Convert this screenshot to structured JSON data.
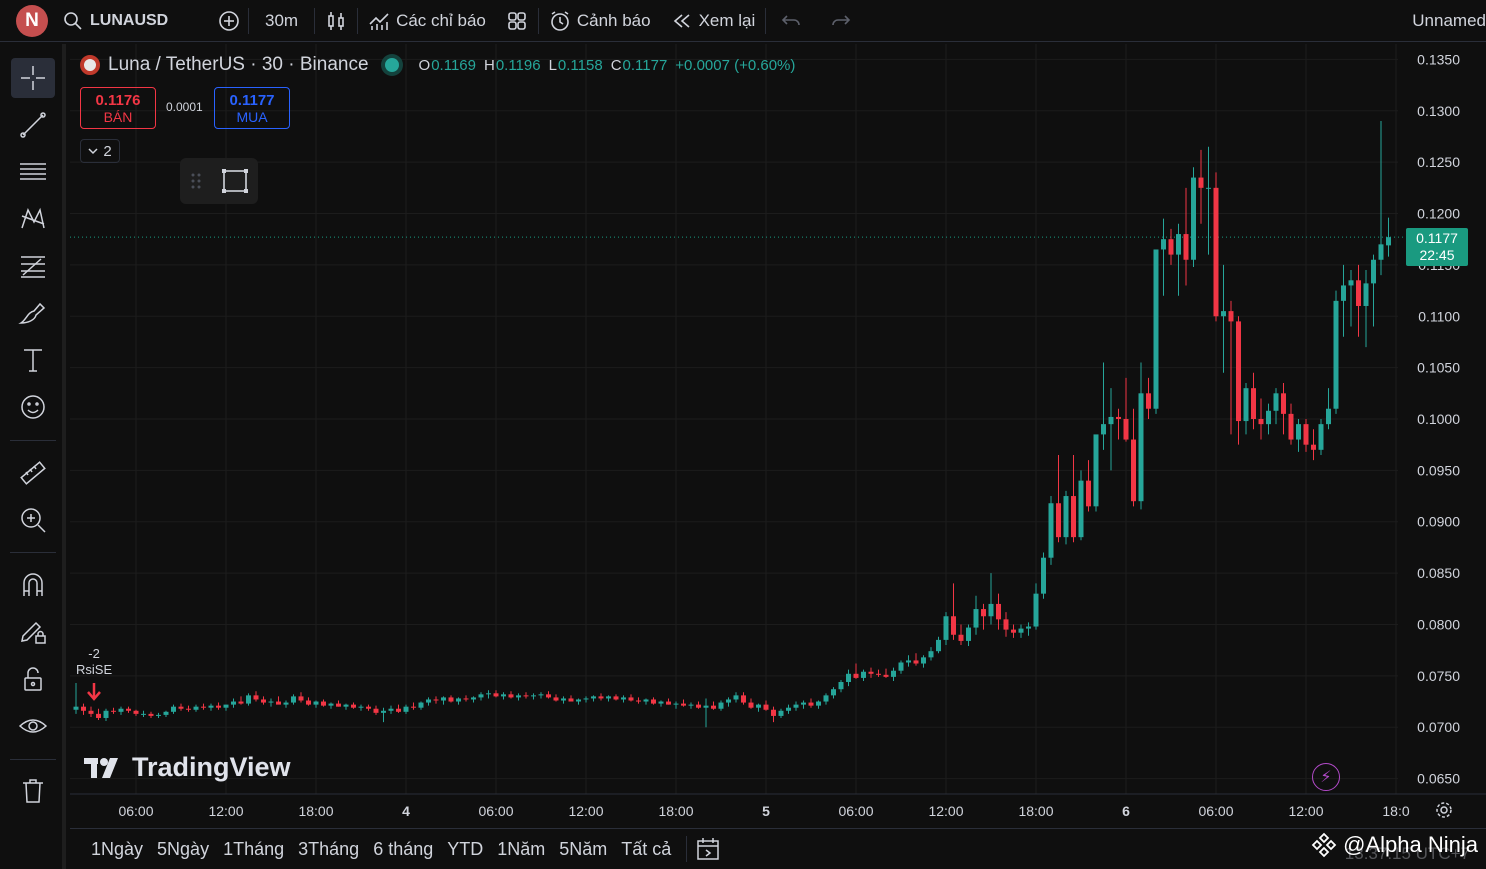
{
  "topbar": {
    "avatar_letter": "N",
    "symbol": "LUNAUSD",
    "interval": "30m",
    "indicators_label": "Các chỉ báo",
    "alerts_label": "Cảnh báo",
    "replay_label": "Xem lại",
    "layout_name": "Unnamed"
  },
  "legend": {
    "title": "Luna / TetherUS · 30 · Binance",
    "o_label": "O",
    "o_value": "0.1169",
    "h_label": "H",
    "h_value": "0.1196",
    "l_label": "L",
    "l_value": "0.1158",
    "c_label": "C",
    "c_value": "0.1177",
    "change": "+0.0007 (+0.60%)"
  },
  "trade": {
    "sell_price": "0.1176",
    "sell_label": "BÁN",
    "spread": "0.0001",
    "buy_price": "0.1177",
    "buy_label": "MUA",
    "collapse_count": "2"
  },
  "price_label": {
    "price": "0.1177",
    "countdown": "22:45"
  },
  "event_marker": {
    "value": "-2",
    "label": "RsiSE"
  },
  "logo_text": "TradingView",
  "ranges": [
    "1Ngày",
    "5Ngày",
    "1Tháng",
    "3Tháng",
    "6 tháng",
    "YTD",
    "1Năm",
    "5Năm",
    "Tất cả"
  ],
  "watermark": "@Alpha Ninja",
  "clock": "13:37:15 UTC+7",
  "colors": {
    "up": "#26a69a",
    "down": "#f23645",
    "background": "#0f0f0f",
    "grid": "#1c1c1c",
    "current_price": "#1a9a80"
  },
  "chart_data": {
    "type": "candlestick",
    "title": "Luna / TetherUS · 30 · Binance",
    "ylim": [
      0.0635,
      0.1365
    ],
    "y_ticks": [
      "0.1350",
      "0.1300",
      "0.1250",
      "0.1200",
      "0.1150",
      "0.1100",
      "0.1050",
      "0.1000",
      "0.0950",
      "0.0900",
      "0.0850",
      "0.0800",
      "0.0750",
      "0.0700",
      "0.0650"
    ],
    "x_ticks": [
      "06:00",
      "12:00",
      "18:00",
      "4",
      "06:00",
      "12:00",
      "18:00",
      "5",
      "06:00",
      "12:00",
      "18:00",
      "6",
      "06:00",
      "12:00",
      "18:0"
    ],
    "x_tick_bar_index": [
      8,
      20,
      32,
      44,
      56,
      68,
      80,
      92,
      104,
      116,
      128,
      140,
      152,
      164,
      176
    ],
    "current_price": 0.1177,
    "grid": true,
    "candles_ohlc": [
      [
        0.0717,
        0.0743,
        0.0713,
        0.072
      ],
      [
        0.072,
        0.0723,
        0.0712,
        0.0716
      ],
      [
        0.0716,
        0.072,
        0.071,
        0.0713
      ],
      [
        0.0713,
        0.0718,
        0.0707,
        0.0709
      ],
      [
        0.0709,
        0.0718,
        0.0706,
        0.0716
      ],
      [
        0.0716,
        0.0719,
        0.0713,
        0.0715
      ],
      [
        0.0715,
        0.072,
        0.0712,
        0.0718
      ],
      [
        0.0718,
        0.072,
        0.0714,
        0.0716
      ],
      [
        0.0716,
        0.0717,
        0.0711,
        0.0713
      ],
      [
        0.0713,
        0.0716,
        0.071,
        0.0713
      ],
      [
        0.0713,
        0.0715,
        0.0709,
        0.0711
      ],
      [
        0.0711,
        0.0714,
        0.0709,
        0.0712
      ],
      [
        0.0712,
        0.0716,
        0.071,
        0.0715
      ],
      [
        0.0715,
        0.0722,
        0.0713,
        0.072
      ],
      [
        0.072,
        0.0723,
        0.0716,
        0.0718
      ],
      [
        0.0718,
        0.0721,
        0.0715,
        0.0717
      ],
      [
        0.0717,
        0.0722,
        0.0715,
        0.072
      ],
      [
        0.072,
        0.0723,
        0.0717,
        0.0719
      ],
      [
        0.0719,
        0.0723,
        0.0716,
        0.0721
      ],
      [
        0.0721,
        0.0724,
        0.0717,
        0.0719
      ],
      [
        0.0719,
        0.0722,
        0.0716,
        0.0722
      ],
      [
        0.0722,
        0.0728,
        0.0719,
        0.0725
      ],
      [
        0.0725,
        0.073,
        0.0722,
        0.0723
      ],
      [
        0.0723,
        0.0733,
        0.0721,
        0.0731
      ],
      [
        0.0731,
        0.0735,
        0.0725,
        0.0727
      ],
      [
        0.0727,
        0.073,
        0.0722,
        0.0724
      ],
      [
        0.0724,
        0.0728,
        0.072,
        0.0725
      ],
      [
        0.0725,
        0.073,
        0.0723,
        0.0722
      ],
      [
        0.0722,
        0.0726,
        0.0719,
        0.0724
      ],
      [
        0.0724,
        0.0732,
        0.0722,
        0.073
      ],
      [
        0.073,
        0.0734,
        0.0724,
        0.0726
      ],
      [
        0.0726,
        0.0729,
        0.0721,
        0.0722
      ],
      [
        0.0722,
        0.0726,
        0.0719,
        0.0725
      ],
      [
        0.0725,
        0.0727,
        0.072,
        0.0721
      ],
      [
        0.0721,
        0.0724,
        0.0718,
        0.0723
      ],
      [
        0.0723,
        0.0726,
        0.072,
        0.072
      ],
      [
        0.072,
        0.0723,
        0.0717,
        0.0722
      ],
      [
        0.0722,
        0.0724,
        0.0718,
        0.0719
      ],
      [
        0.0719,
        0.0722,
        0.0716,
        0.072
      ],
      [
        0.072,
        0.0722,
        0.0716,
        0.0718
      ],
      [
        0.0718,
        0.0721,
        0.0712,
        0.0714
      ],
      [
        0.0714,
        0.0719,
        0.0705,
        0.0716
      ],
      [
        0.0716,
        0.0721,
        0.0713,
        0.0718
      ],
      [
        0.0718,
        0.0722,
        0.0714,
        0.0715
      ],
      [
        0.0715,
        0.0722,
        0.0713,
        0.072
      ],
      [
        0.072,
        0.0724,
        0.0717,
        0.0719
      ],
      [
        0.0719,
        0.0725,
        0.0717,
        0.0724
      ],
      [
        0.0724,
        0.0729,
        0.0721,
        0.0727
      ],
      [
        0.0727,
        0.073,
        0.0723,
        0.0726
      ],
      [
        0.0726,
        0.073,
        0.0722,
        0.0729
      ],
      [
        0.0729,
        0.0731,
        0.0724,
        0.0725
      ],
      [
        0.0725,
        0.0729,
        0.0722,
        0.0728
      ],
      [
        0.0728,
        0.0731,
        0.0725,
        0.0727
      ],
      [
        0.0727,
        0.073,
        0.0724,
        0.0729
      ],
      [
        0.0729,
        0.0734,
        0.0726,
        0.0732
      ],
      [
        0.0732,
        0.0736,
        0.0728,
        0.0733
      ],
      [
        0.0733,
        0.0736,
        0.0729,
        0.073
      ],
      [
        0.073,
        0.0734,
        0.0727,
        0.0732
      ],
      [
        0.0732,
        0.0735,
        0.0728,
        0.0729
      ],
      [
        0.0729,
        0.0733,
        0.0726,
        0.0731
      ],
      [
        0.0731,
        0.0734,
        0.0728,
        0.073
      ],
      [
        0.073,
        0.0733,
        0.0727,
        0.0731
      ],
      [
        0.0731,
        0.0734,
        0.0728,
        0.0732
      ],
      [
        0.0732,
        0.0735,
        0.0728,
        0.0729
      ],
      [
        0.0729,
        0.0732,
        0.0725,
        0.0726
      ],
      [
        0.0726,
        0.073,
        0.0723,
        0.0728
      ],
      [
        0.0728,
        0.0731,
        0.0725,
        0.0725
      ],
      [
        0.0725,
        0.0728,
        0.0722,
        0.0727
      ],
      [
        0.0727,
        0.073,
        0.0724,
        0.0728
      ],
      [
        0.0728,
        0.0731,
        0.0725,
        0.073
      ],
      [
        0.073,
        0.0733,
        0.0726,
        0.0728
      ],
      [
        0.0728,
        0.0731,
        0.0725,
        0.073
      ],
      [
        0.073,
        0.0732,
        0.0726,
        0.0727
      ],
      [
        0.0727,
        0.0731,
        0.0724,
        0.0729
      ],
      [
        0.0729,
        0.0732,
        0.0725,
        0.0726
      ],
      [
        0.0726,
        0.0729,
        0.0723,
        0.0725
      ],
      [
        0.0725,
        0.0728,
        0.0722,
        0.0727
      ],
      [
        0.0727,
        0.0729,
        0.0722,
        0.0723
      ],
      [
        0.0723,
        0.0726,
        0.072,
        0.0725
      ],
      [
        0.0725,
        0.0728,
        0.0722,
        0.0722
      ],
      [
        0.0722,
        0.0725,
        0.0718,
        0.0723
      ],
      [
        0.0723,
        0.0727,
        0.072,
        0.0721
      ],
      [
        0.0721,
        0.0724,
        0.0718,
        0.0722
      ],
      [
        0.0722,
        0.0725,
        0.0718,
        0.0719
      ],
      [
        0.0719,
        0.0728,
        0.07,
        0.0721
      ],
      [
        0.0721,
        0.0725,
        0.0717,
        0.0718
      ],
      [
        0.0718,
        0.0726,
        0.0716,
        0.0724
      ],
      [
        0.0724,
        0.0729,
        0.072,
        0.0727
      ],
      [
        0.0727,
        0.0734,
        0.0724,
        0.0731
      ],
      [
        0.0731,
        0.0734,
        0.0722,
        0.0724
      ],
      [
        0.0724,
        0.0728,
        0.0718,
        0.0719
      ],
      [
        0.0719,
        0.0723,
        0.0715,
        0.0722
      ],
      [
        0.0722,
        0.0726,
        0.0716,
        0.0717
      ],
      [
        0.0717,
        0.072,
        0.0705,
        0.0711
      ],
      [
        0.0711,
        0.0718,
        0.0709,
        0.0716
      ],
      [
        0.0716,
        0.0722,
        0.0713,
        0.0719
      ],
      [
        0.0719,
        0.0725,
        0.0716,
        0.0722
      ],
      [
        0.0722,
        0.0726,
        0.0718,
        0.0724
      ],
      [
        0.0724,
        0.0728,
        0.0719,
        0.0721
      ],
      [
        0.0721,
        0.0726,
        0.0718,
        0.0725
      ],
      [
        0.0725,
        0.0733,
        0.0722,
        0.0731
      ],
      [
        0.0731,
        0.0739,
        0.0728,
        0.0737
      ],
      [
        0.0737,
        0.0746,
        0.0734,
        0.0744
      ],
      [
        0.0744,
        0.0756,
        0.074,
        0.0752
      ],
      [
        0.0752,
        0.0762,
        0.0747,
        0.0748
      ],
      [
        0.0748,
        0.0756,
        0.0745,
        0.0754
      ],
      [
        0.0754,
        0.0758,
        0.0748,
        0.0752
      ],
      [
        0.0752,
        0.0756,
        0.0749,
        0.0751
      ],
      [
        0.0751,
        0.0757,
        0.0748,
        0.0749
      ],
      [
        0.0749,
        0.0758,
        0.0745,
        0.0755
      ],
      [
        0.0755,
        0.0765,
        0.0752,
        0.0763
      ],
      [
        0.0763,
        0.077,
        0.0759,
        0.0765
      ],
      [
        0.0765,
        0.0772,
        0.076,
        0.0762
      ],
      [
        0.0762,
        0.077,
        0.0758,
        0.0768
      ],
      [
        0.0768,
        0.0778,
        0.0765,
        0.0774
      ],
      [
        0.0774,
        0.0788,
        0.0772,
        0.0785
      ],
      [
        0.0785,
        0.0812,
        0.078,
        0.0808
      ],
      [
        0.0808,
        0.084,
        0.0785,
        0.079
      ],
      [
        0.079,
        0.08,
        0.078,
        0.0784
      ],
      [
        0.0784,
        0.08,
        0.0779,
        0.0797
      ],
      [
        0.0797,
        0.0828,
        0.079,
        0.0815
      ],
      [
        0.0815,
        0.082,
        0.0795,
        0.0808
      ],
      [
        0.0808,
        0.085,
        0.08,
        0.082
      ],
      [
        0.082,
        0.083,
        0.0795,
        0.0805
      ],
      [
        0.0805,
        0.0812,
        0.0788,
        0.0795
      ],
      [
        0.0795,
        0.08,
        0.0787,
        0.0792
      ],
      [
        0.0792,
        0.08,
        0.0787,
        0.0796
      ],
      [
        0.0796,
        0.0802,
        0.0789,
        0.0798
      ],
      [
        0.0798,
        0.084,
        0.0795,
        0.083
      ],
      [
        0.083,
        0.087,
        0.0825,
        0.0865
      ],
      [
        0.0865,
        0.0925,
        0.0858,
        0.0918
      ],
      [
        0.0918,
        0.0965,
        0.088,
        0.0885
      ],
      [
        0.0885,
        0.093,
        0.0878,
        0.0925
      ],
      [
        0.0925,
        0.0965,
        0.088,
        0.0885
      ],
      [
        0.0885,
        0.095,
        0.0882,
        0.094
      ],
      [
        0.094,
        0.096,
        0.091,
        0.0915
      ],
      [
        0.0915,
        0.0975,
        0.091,
        0.0985
      ],
      [
        0.0985,
        0.1055,
        0.097,
        0.0995
      ],
      [
        0.0995,
        0.103,
        0.095,
        0.1002
      ],
      [
        0.1002,
        0.101,
        0.098,
        0.1
      ],
      [
        0.1,
        0.104,
        0.0978,
        0.098
      ],
      [
        0.098,
        0.101,
        0.0915,
        0.092
      ],
      [
        0.092,
        0.1055,
        0.0912,
        0.1025
      ],
      [
        0.1025,
        0.104,
        0.1,
        0.101
      ],
      [
        0.101,
        0.114,
        0.1005,
        0.1165
      ],
      [
        0.1165,
        0.1195,
        0.112,
        0.1175
      ],
      [
        0.1175,
        0.1185,
        0.115,
        0.116
      ],
      [
        0.116,
        0.119,
        0.112,
        0.118
      ],
      [
        0.118,
        0.1225,
        0.113,
        0.1155
      ],
      [
        0.1155,
        0.1245,
        0.1148,
        0.1235
      ],
      [
        0.1235,
        0.1262,
        0.119,
        0.1225
      ],
      [
        0.1225,
        0.1265,
        0.116,
        0.1225
      ],
      [
        0.1225,
        0.124,
        0.1095,
        0.11
      ],
      [
        0.11,
        0.115,
        0.1045,
        0.1105
      ],
      [
        0.1105,
        0.1115,
        0.0985,
        0.1095
      ],
      [
        0.1095,
        0.11,
        0.0975,
        0.0998
      ],
      [
        0.0998,
        0.1035,
        0.0985,
        0.103
      ],
      [
        0.103,
        0.1045,
        0.099,
        0.1
      ],
      [
        0.1,
        0.102,
        0.098,
        0.0995
      ],
      [
        0.0995,
        0.1015,
        0.0985,
        0.1008
      ],
      [
        0.1008,
        0.103,
        0.0995,
        0.1025
      ],
      [
        0.1025,
        0.1035,
        0.0985,
        0.1005
      ],
      [
        0.1005,
        0.1015,
        0.0975,
        0.098
      ],
      [
        0.098,
        0.1,
        0.0968,
        0.0995
      ],
      [
        0.0995,
        0.1,
        0.0968,
        0.0975
      ],
      [
        0.0975,
        0.099,
        0.096,
        0.097
      ],
      [
        0.097,
        0.1,
        0.0965,
        0.0995
      ],
      [
        0.0995,
        0.103,
        0.099,
        0.101
      ],
      [
        0.101,
        0.1125,
        0.1005,
        0.1115
      ],
      [
        0.1115,
        0.115,
        0.108,
        0.113
      ],
      [
        0.113,
        0.1145,
        0.109,
        0.1135
      ],
      [
        0.1135,
        0.115,
        0.108,
        0.111
      ],
      [
        0.111,
        0.1145,
        0.107,
        0.1132
      ],
      [
        0.1132,
        0.116,
        0.109,
        0.1155
      ],
      [
        0.1155,
        0.129,
        0.114,
        0.117
      ],
      [
        0.1169,
        0.1196,
        0.1158,
        0.1177
      ]
    ]
  }
}
